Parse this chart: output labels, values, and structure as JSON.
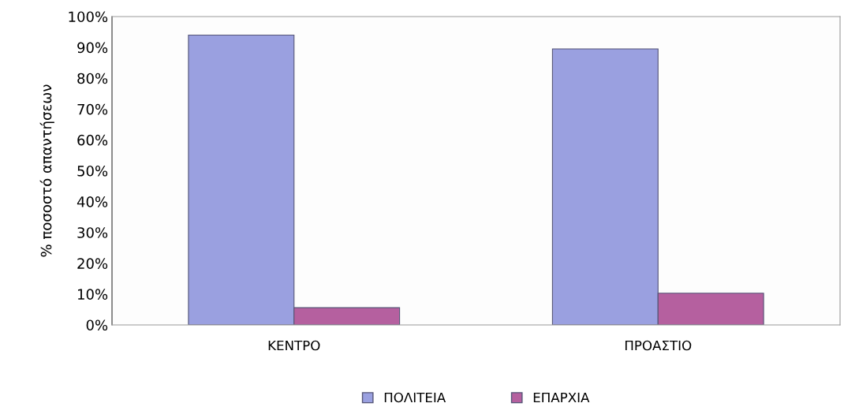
{
  "chart_data": {
    "type": "bar",
    "ylabel": "% ποσοστό απαντήσεων",
    "categories": [
      "ΚΕΝΤΡΟ",
      "ΠΡΟΑΣΤΙΟ"
    ],
    "series": [
      {
        "name": "ΠΟΛΙΤΕΙΑ",
        "color": "#9aa0e0",
        "values": [
          94,
          89.5
        ]
      },
      {
        "name": "ΕΠΑΡΧΙΑ",
        "color": "#b5609f",
        "values": [
          5.6,
          10.3
        ]
      }
    ],
    "ylim": [
      0,
      100
    ],
    "yticks": [
      {
        "value": 0,
        "label": "0%"
      },
      {
        "value": 10,
        "label": "10%"
      },
      {
        "value": 20,
        "label": "20%"
      },
      {
        "value": 30,
        "label": "30%"
      },
      {
        "value": 40,
        "label": "40%"
      },
      {
        "value": 50,
        "label": "50%"
      },
      {
        "value": 60,
        "label": "60%"
      },
      {
        "value": 70,
        "label": "70%"
      },
      {
        "value": 80,
        "label": "80%"
      },
      {
        "value": 90,
        "label": "90%"
      },
      {
        "value": 100,
        "label": "100%"
      }
    ],
    "grid": false,
    "legend": "bottom"
  }
}
